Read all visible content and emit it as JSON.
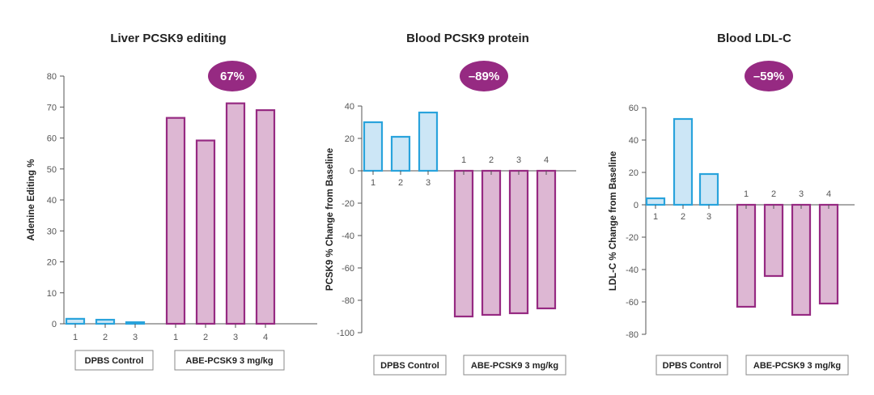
{
  "colors": {
    "control_fill": "#cce6f6",
    "control_stroke": "#29a3dc",
    "treated_fill": "#ddb7d3",
    "treated_stroke": "#962a82",
    "badge": "#962a82",
    "axis": "#555555"
  },
  "groups": {
    "control": "DPBS Control",
    "treated": "ABE-PCSK9 3 mg/kg"
  },
  "chart_data": [
    {
      "type": "bar",
      "title": "Liver PCSK9 editing",
      "ylabel": "Adenine Editing %",
      "ylim": [
        0,
        80
      ],
      "yticks": [
        0,
        10,
        20,
        30,
        40,
        50,
        60,
        70,
        80
      ],
      "badge": "67%",
      "series": [
        {
          "group": "control",
          "categories": [
            "1",
            "2",
            "3"
          ],
          "values": [
            1.6,
            1.3,
            0.5
          ]
        },
        {
          "group": "treated",
          "categories": [
            "1",
            "2",
            "3",
            "4"
          ],
          "values": [
            66.5,
            59.2,
            71.2,
            69.0
          ]
        }
      ]
    },
    {
      "type": "bar",
      "title": "Blood PCSK9 protein",
      "ylabel": "PCSK9 % Change from Baseline",
      "ylim": [
        -100,
        40
      ],
      "yticks": [
        40,
        20,
        0,
        -20,
        -40,
        -60,
        -80,
        -100
      ],
      "badge": "–89%",
      "series": [
        {
          "group": "control",
          "categories": [
            "1",
            "2",
            "3"
          ],
          "values": [
            30,
            21,
            36
          ]
        },
        {
          "group": "treated",
          "categories": [
            "1",
            "2",
            "3",
            "4"
          ],
          "values": [
            -90,
            -89,
            -88,
            -85
          ]
        }
      ]
    },
    {
      "type": "bar",
      "title": "Blood LDL-C",
      "ylabel": "LDL-C % Change from Baseline",
      "ylim": [
        -80,
        60
      ],
      "yticks": [
        60,
        40,
        20,
        0,
        -20,
        -40,
        -60,
        -80
      ],
      "badge": "–59%",
      "series": [
        {
          "group": "control",
          "categories": [
            "1",
            "2",
            "3"
          ],
          "values": [
            4,
            53,
            19
          ]
        },
        {
          "group": "treated",
          "categories": [
            "1",
            "2",
            "3",
            "4"
          ],
          "values": [
            -63,
            -44,
            -68,
            -61
          ]
        }
      ]
    }
  ]
}
